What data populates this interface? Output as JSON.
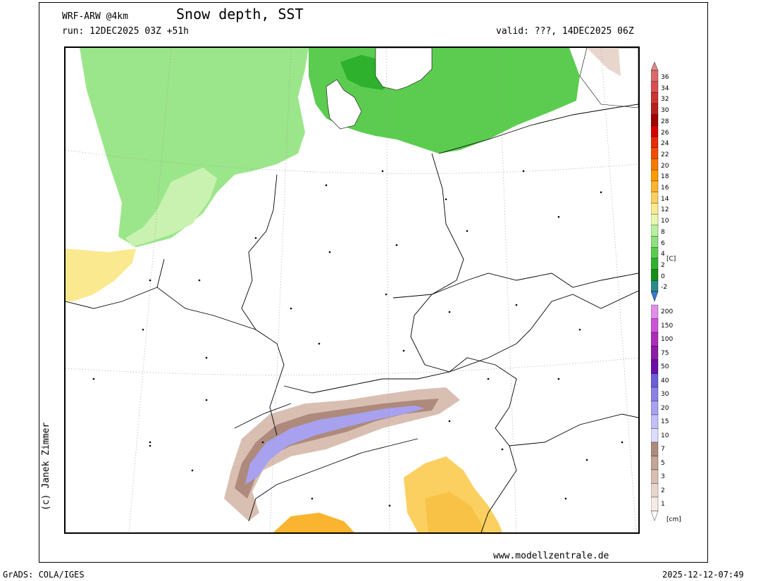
{
  "header": {
    "model": "WRF-ARW @4km",
    "title": "Snow depth, SST",
    "run": "run: 12DEC2025 03Z +51h",
    "valid": "valid: ???, 14DEC2025 06Z"
  },
  "footer": {
    "site": "www.modellzentrale.de",
    "software": "GrADS: COLA/IGES",
    "timestamp": "2025-12-12-07:49",
    "author": "(c) Janek Zimmer"
  },
  "legend_sst": {
    "unit": "[C]",
    "levels": [
      {
        "label": "36",
        "color": "#d96a6a"
      },
      {
        "label": "34",
        "color": "#d95050"
      },
      {
        "label": "32",
        "color": "#cc3333"
      },
      {
        "label": "30",
        "color": "#b81e1e"
      },
      {
        "label": "28",
        "color": "#a00000"
      },
      {
        "label": "26",
        "color": "#d60000"
      },
      {
        "label": "24",
        "color": "#e82a00"
      },
      {
        "label": "22",
        "color": "#f24d00"
      },
      {
        "label": "20",
        "color": "#f77a00"
      },
      {
        "label": "18",
        "color": "#fa9a00"
      },
      {
        "label": "16",
        "color": "#fbb430"
      },
      {
        "label": "14",
        "color": "#fbd060"
      },
      {
        "label": "12",
        "color": "#fbe98f"
      },
      {
        "label": "10",
        "color": "#e8f7b0"
      },
      {
        "label": "8",
        "color": "#b9f0a0"
      },
      {
        "label": "6",
        "color": "#8ee07e"
      },
      {
        "label": "4",
        "color": "#5ccc50"
      },
      {
        "label": "2",
        "color": "#2eb22e"
      },
      {
        "label": "0",
        "color": "#168f16"
      },
      {
        "label": "-2",
        "color": "#2a8a8a"
      }
    ],
    "bottom_color": "#3a7acc",
    "top_color": "#e08a8a"
  },
  "legend_snow": {
    "unit": "[cm]",
    "levels": [
      {
        "label": "200",
        "color": "#e08ee8"
      },
      {
        "label": "150",
        "color": "#cc55d6"
      },
      {
        "label": "100",
        "color": "#ad2dba"
      },
      {
        "label": "75",
        "color": "#8c1ca6"
      },
      {
        "label": "50",
        "color": "#6a10a8"
      },
      {
        "label": "40",
        "color": "#6d5cd9"
      },
      {
        "label": "30",
        "color": "#8a80e6"
      },
      {
        "label": "20",
        "color": "#a7a1f0"
      },
      {
        "label": "15",
        "color": "#c2bef7"
      },
      {
        "label": "10",
        "color": "#dcdafc"
      },
      {
        "label": "7",
        "color": "#ae8a7c"
      },
      {
        "label": "5",
        "color": "#c4a597"
      },
      {
        "label": "3",
        "color": "#d9bfb2"
      },
      {
        "label": "2",
        "color": "#e8d6cc"
      },
      {
        "label": "1",
        "color": "#f5ebe6"
      }
    ]
  }
}
